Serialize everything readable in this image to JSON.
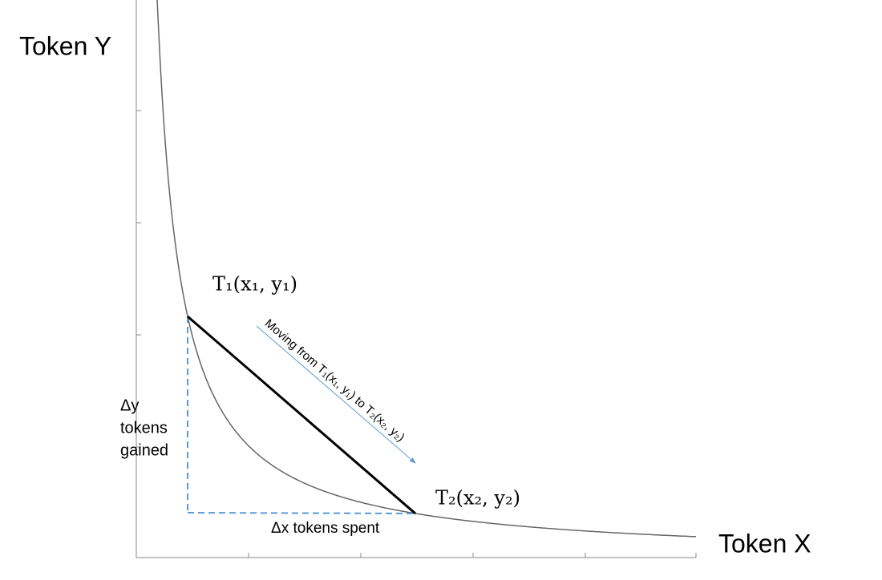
{
  "axes": {
    "y_label": "Token Y",
    "x_label": "Token X"
  },
  "points": {
    "start": "T₁(x₁, y₁)",
    "end": "T₂(x₂, y₂)"
  },
  "arrow_label": "Moving from T₁(x₁, y₁) to T₂(x₂, y₂)",
  "delta_y": [
    "Δy",
    "tokens",
    "gained"
  ],
  "delta_x": "Δx tokens spent"
}
